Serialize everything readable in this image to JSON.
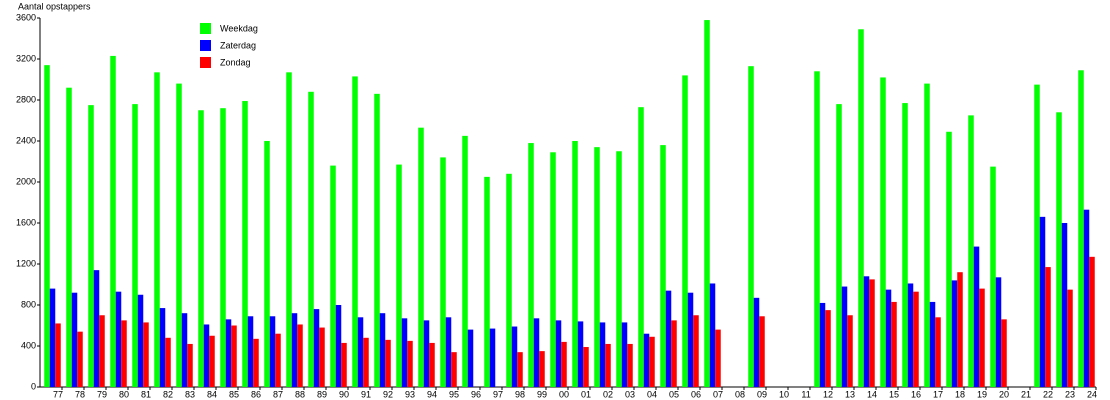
{
  "chart_data": {
    "type": "bar",
    "y_axis_label": "Aantal opstappers",
    "categories": [
      "77",
      "78",
      "79",
      "80",
      "81",
      "82",
      "83",
      "84",
      "85",
      "86",
      "87",
      "88",
      "89",
      "90",
      "91",
      "92",
      "93",
      "94",
      "95",
      "96",
      "97",
      "98",
      "99",
      "00",
      "01",
      "02",
      "03",
      "04",
      "05",
      "06",
      "07",
      "08",
      "09",
      "10",
      "11",
      "12",
      "13",
      "14",
      "15",
      "16",
      "17",
      "18",
      "19",
      "20",
      "21",
      "22",
      "23",
      "24"
    ],
    "series": [
      {
        "name": "Weekdag",
        "color": "#00ff00",
        "values": [
          3140,
          2920,
          2750,
          3230,
          2760,
          3070,
          2960,
          2700,
          2720,
          2790,
          2400,
          3070,
          2880,
          2160,
          3030,
          2860,
          2170,
          2530,
          2240,
          2450,
          2050,
          2080,
          2380,
          2290,
          2400,
          2340,
          2300,
          2730,
          2360,
          3040,
          3580,
          null,
          3130,
          null,
          null,
          3080,
          2760,
          3490,
          3020,
          2770,
          2960,
          2490,
          2650,
          2150,
          null,
          2950,
          2680,
          3090
        ]
      },
      {
        "name": "Zaterdag",
        "color": "#0000ff",
        "values": [
          960,
          920,
          1140,
          930,
          900,
          770,
          720,
          610,
          660,
          690,
          690,
          720,
          760,
          800,
          680,
          720,
          670,
          650,
          680,
          560,
          570,
          590,
          670,
          650,
          640,
          630,
          630,
          520,
          940,
          920,
          1010,
          null,
          870,
          null,
          null,
          820,
          980,
          1080,
          950,
          1010,
          830,
          1040,
          1370,
          1070,
          null,
          1660,
          1600,
          1730
        ]
      },
      {
        "name": "Zondag",
        "color": "#ff0000",
        "values": [
          620,
          540,
          700,
          650,
          630,
          480,
          420,
          500,
          600,
          470,
          520,
          610,
          580,
          430,
          480,
          460,
          450,
          430,
          340,
          null,
          null,
          340,
          350,
          440,
          390,
          420,
          420,
          490,
          650,
          700,
          560,
          null,
          690,
          null,
          null,
          750,
          700,
          1050,
          830,
          930,
          680,
          1120,
          960,
          660,
          null,
          1170,
          950,
          1270
        ]
      }
    ],
    "ylim": [
      0,
      3600
    ],
    "yticks": [
      0,
      400,
      800,
      1200,
      1600,
      2000,
      2400,
      2800,
      3200,
      3600
    ],
    "grid": false,
    "legend": "top-left"
  }
}
